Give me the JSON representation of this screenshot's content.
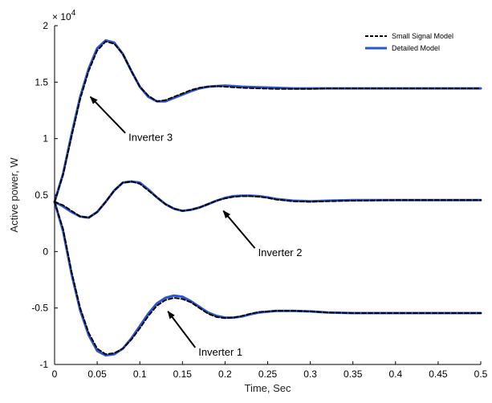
{
  "chart_data": {
    "type": "line",
    "xlabel": "Time, Sec",
    "ylabel": "Active power, W",
    "xlim": [
      0,
      0.5
    ],
    "ylim": [
      -10000,
      20000
    ],
    "y_exponent_label": "× 10",
    "y_exponent_power": "4",
    "x_ticks": [
      0,
      0.05,
      0.1,
      0.15,
      0.2,
      0.25,
      0.3,
      0.35,
      0.4,
      0.45,
      0.5
    ],
    "x_tick_labels": [
      "0",
      "0.05",
      "0.1",
      "0.15",
      "0.2",
      "0.25",
      "0.3",
      "0.35",
      "0.4",
      "0.45",
      "0.5"
    ],
    "y_ticks": [
      -10000,
      -5000,
      0,
      5000,
      10000,
      15000,
      20000
    ],
    "y_tick_labels": [
      "-1",
      "-0.5",
      "0",
      "0.5",
      "1",
      "1.5",
      "2"
    ],
    "grid": false,
    "legend_position": "top-right",
    "series": [
      {
        "name": "Small Signal Model",
        "style": "dashed",
        "color": "#000000",
        "curves": [
          {
            "x": [
              0,
              0.01,
              0.02,
              0.03,
              0.04,
              0.05,
              0.06,
              0.07,
              0.08,
              0.09,
              0.1,
              0.11,
              0.12,
              0.13,
              0.14,
              0.15,
              0.16,
              0.17,
              0.18,
              0.19,
              0.2,
              0.21,
              0.22,
              0.24,
              0.26,
              0.28,
              0.3,
              0.32,
              0.35,
              0.4,
              0.45,
              0.5
            ],
            "y": [
              4400,
              6800,
              10200,
              13500,
              16000,
              17800,
              18600,
              18400,
              17500,
              16000,
              14600,
              13800,
              13300,
              13400,
              13700,
              14000,
              14300,
              14500,
              14600,
              14650,
              14600,
              14550,
              14500,
              14450,
              14400,
              14400,
              14400,
              14450,
              14450,
              14450,
              14450,
              14450
            ]
          },
          {
            "x": [
              0,
              0.01,
              0.02,
              0.03,
              0.04,
              0.05,
              0.06,
              0.07,
              0.08,
              0.09,
              0.1,
              0.11,
              0.12,
              0.13,
              0.14,
              0.15,
              0.16,
              0.17,
              0.18,
              0.19,
              0.2,
              0.21,
              0.22,
              0.23,
              0.24,
              0.25,
              0.26,
              0.28,
              0.3,
              0.32,
              0.35,
              0.4,
              0.45,
              0.5
            ],
            "y": [
              4400,
              4100,
              3600,
              3100,
              3000,
              3500,
              4400,
              5400,
              6100,
              6200,
              6000,
              5400,
              4800,
              4200,
              3800,
              3600,
              3700,
              3900,
              4200,
              4500,
              4700,
              4850,
              4900,
              4900,
              4850,
              4750,
              4600,
              4450,
              4400,
              4450,
              4500,
              4550,
              4550,
              4550
            ]
          },
          {
            "x": [
              0,
              0.01,
              0.02,
              0.03,
              0.04,
              0.05,
              0.06,
              0.07,
              0.08,
              0.09,
              0.1,
              0.11,
              0.12,
              0.13,
              0.14,
              0.15,
              0.16,
              0.17,
              0.18,
              0.19,
              0.2,
              0.21,
              0.22,
              0.23,
              0.24,
              0.26,
              0.28,
              0.3,
              0.32,
              0.35,
              0.4,
              0.45,
              0.5
            ],
            "y": [
              4400,
              2000,
              -1800,
              -5000,
              -7200,
              -8600,
              -9100,
              -9000,
              -8600,
              -7800,
              -6800,
              -5700,
              -4800,
              -4300,
              -4100,
              -4200,
              -4500,
              -5000,
              -5500,
              -5800,
              -5900,
              -5850,
              -5700,
              -5500,
              -5350,
              -5250,
              -5250,
              -5300,
              -5400,
              -5450,
              -5450,
              -5450,
              -5450
            ]
          }
        ]
      },
      {
        "name": "Detailed Model",
        "style": "solid",
        "color": "#2a55d6",
        "curves": [
          {
            "x": [
              0,
              0.01,
              0.02,
              0.03,
              0.04,
              0.05,
              0.06,
              0.07,
              0.08,
              0.09,
              0.1,
              0.11,
              0.12,
              0.13,
              0.14,
              0.15,
              0.16,
              0.17,
              0.18,
              0.19,
              0.2,
              0.21,
              0.22,
              0.24,
              0.26,
              0.28,
              0.3,
              0.32,
              0.35,
              0.4,
              0.45,
              0.5
            ],
            "y": [
              4400,
              6900,
              10400,
              13700,
              16200,
              18000,
              18700,
              18500,
              17500,
              16000,
              14600,
              13700,
              13300,
              13300,
              13600,
              13900,
              14200,
              14450,
              14600,
              14650,
              14700,
              14650,
              14600,
              14550,
              14500,
              14450,
              14450,
              14450,
              14450,
              14450,
              14450,
              14450
            ]
          },
          {
            "x": [
              0,
              0.01,
              0.02,
              0.03,
              0.04,
              0.05,
              0.06,
              0.07,
              0.08,
              0.09,
              0.1,
              0.11,
              0.12,
              0.13,
              0.14,
              0.15,
              0.16,
              0.17,
              0.18,
              0.19,
              0.2,
              0.21,
              0.22,
              0.23,
              0.24,
              0.25,
              0.26,
              0.28,
              0.3,
              0.32,
              0.35,
              0.4,
              0.45,
              0.5
            ],
            "y": [
              4400,
              4000,
              3500,
              3100,
              3000,
              3500,
              4400,
              5400,
              6100,
              6200,
              6100,
              5500,
              4800,
              4200,
              3800,
              3600,
              3700,
              3900,
              4200,
              4500,
              4750,
              4900,
              4950,
              4950,
              4900,
              4800,
              4650,
              4500,
              4450,
              4500,
              4550,
              4550,
              4550,
              4550
            ]
          },
          {
            "x": [
              0,
              0.01,
              0.02,
              0.03,
              0.04,
              0.05,
              0.06,
              0.07,
              0.08,
              0.09,
              0.1,
              0.11,
              0.12,
              0.13,
              0.14,
              0.15,
              0.16,
              0.17,
              0.18,
              0.19,
              0.2,
              0.21,
              0.22,
              0.23,
              0.24,
              0.26,
              0.28,
              0.3,
              0.32,
              0.35,
              0.4,
              0.45,
              0.5
            ],
            "y": [
              4400,
              1800,
              -2000,
              -5200,
              -7400,
              -8800,
              -9200,
              -9100,
              -8600,
              -7700,
              -6600,
              -5500,
              -4600,
              -4100,
              -3900,
              -4000,
              -4400,
              -4900,
              -5400,
              -5700,
              -5850,
              -5850,
              -5750,
              -5550,
              -5400,
              -5250,
              -5250,
              -5300,
              -5400,
              -5450,
              -5450,
              -5450,
              -5450
            ]
          }
        ]
      }
    ],
    "annotations": [
      {
        "text": "Inverter 3",
        "text_x": 0.083,
        "text_y": 10500,
        "arrow_to_x": 0.042,
        "arrow_to_y": 13700
      },
      {
        "text": "Inverter 2",
        "text_x": 0.235,
        "text_y": 300,
        "arrow_to_x": 0.198,
        "arrow_to_y": 3600
      },
      {
        "text": "Inverter 1",
        "text_x": 0.165,
        "text_y": -8500,
        "arrow_to_x": 0.133,
        "arrow_to_y": -5300
      }
    ]
  }
}
